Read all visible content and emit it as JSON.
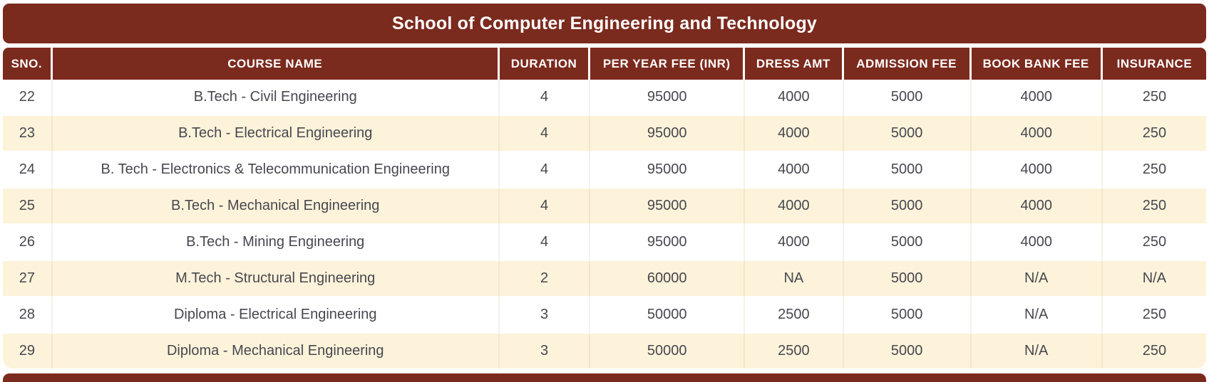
{
  "title": "School of Computer Engineering and Technology",
  "theme": {
    "maroon": "#7b2a1e",
    "cream": "#fdf3da",
    "text": "#474750",
    "header_text": "#ffffff"
  },
  "table": {
    "columns": [
      "SNO.",
      "COURSE NAME",
      "DURATION",
      "PER YEAR FEE (INR)",
      "DRESS AMT",
      "ADMISSION FEE",
      "BOOK BANK FEE",
      "INSURANCE"
    ],
    "rows": [
      [
        "22",
        "B.Tech - Civil Engineering",
        "4",
        "95000",
        "4000",
        "5000",
        "4000",
        "250"
      ],
      [
        "23",
        "B.Tech - Electrical Engineering",
        "4",
        "95000",
        "4000",
        "5000",
        "4000",
        "250"
      ],
      [
        "24",
        "B. Tech - Electronics & Telecommunication Engineering",
        "4",
        "95000",
        "4000",
        "5000",
        "4000",
        "250"
      ],
      [
        "25",
        "B.Tech - Mechanical Engineering",
        "4",
        "95000",
        "4000",
        "5000",
        "4000",
        "250"
      ],
      [
        "26",
        "B.Tech - Mining Engineering",
        "4",
        "95000",
        "4000",
        "5000",
        "4000",
        "250"
      ],
      [
        "27",
        "M.Tech - Structural Engineering",
        "2",
        "60000",
        "NA",
        "5000",
        "N/A",
        "N/A"
      ],
      [
        "28",
        "Diploma - Electrical Engineering",
        "3",
        "50000",
        "2500",
        "5000",
        "N/A",
        "250"
      ],
      [
        "29",
        "Diploma - Mechanical Engineering",
        "3",
        "50000",
        "2500",
        "5000",
        "N/A",
        "250"
      ]
    ]
  }
}
